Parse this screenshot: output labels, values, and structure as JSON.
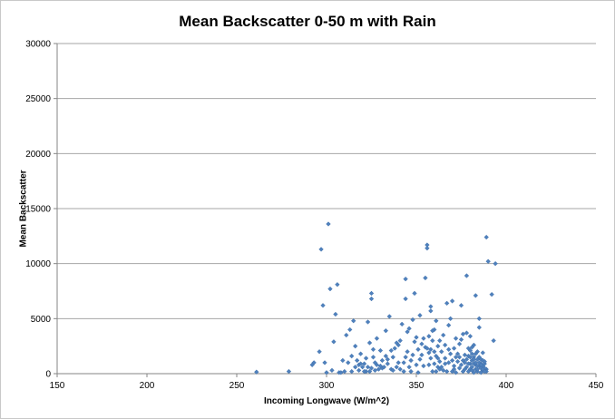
{
  "chart_data": {
    "type": "scatter",
    "title": "Mean Backscatter 0-50 m with Rain",
    "xlabel": "Incoming Longwave (W/m^2)",
    "ylabel": "Mean Backscatter",
    "xlim": [
      150,
      450
    ],
    "ylim": [
      0,
      30000
    ],
    "xticks": [
      "150",
      "200",
      "250",
      "300",
      "350",
      "400",
      "450"
    ],
    "yticks": [
      "0",
      "5000",
      "10000",
      "15000",
      "20000",
      "25000",
      "30000"
    ],
    "grid": "horizontal",
    "legend": "none",
    "marker_color": "#4f81bd",
    "points": [
      [
        261,
        150
      ],
      [
        279,
        200
      ],
      [
        292,
        800
      ],
      [
        293,
        1000
      ],
      [
        296,
        2000
      ],
      [
        297,
        11300
      ],
      [
        298,
        6200
      ],
      [
        299,
        1000
      ],
      [
        300,
        100
      ],
      [
        301,
        13600
      ],
      [
        302,
        7700
      ],
      [
        303,
        300
      ],
      [
        304,
        2900
      ],
      [
        305,
        5400
      ],
      [
        306,
        8100
      ],
      [
        307,
        100
      ],
      [
        308,
        100
      ],
      [
        309,
        1200
      ],
      [
        310,
        200
      ],
      [
        311,
        3500
      ],
      [
        312,
        1000
      ],
      [
        313,
        4000
      ],
      [
        314,
        200
      ],
      [
        315,
        4800
      ],
      [
        316,
        2500
      ],
      [
        317,
        1200
      ],
      [
        318,
        800
      ],
      [
        319,
        1800
      ],
      [
        320,
        600
      ],
      [
        321,
        900
      ],
      [
        322,
        200
      ],
      [
        323,
        4700
      ],
      [
        324,
        2800
      ],
      [
        325,
        7300
      ],
      [
        325,
        6800
      ],
      [
        326,
        1500
      ],
      [
        327,
        300
      ],
      [
        328,
        3200
      ],
      [
        330,
        2100
      ],
      [
        331,
        500
      ],
      [
        332,
        600
      ],
      [
        333,
        3900
      ],
      [
        334,
        1300
      ],
      [
        335,
        5200
      ],
      [
        336,
        400
      ],
      [
        337,
        1500
      ],
      [
        338,
        2300
      ],
      [
        339,
        2800
      ],
      [
        340,
        1000
      ],
      [
        341,
        3000
      ],
      [
        342,
        4500
      ],
      [
        343,
        200
      ],
      [
        344,
        8600
      ],
      [
        344,
        6800
      ],
      [
        345,
        2000
      ],
      [
        346,
        4100
      ],
      [
        347,
        1200
      ],
      [
        348,
        4900
      ],
      [
        349,
        7300
      ],
      [
        350,
        800
      ],
      [
        351,
        100
      ],
      [
        352,
        5300
      ],
      [
        353,
        2700
      ],
      [
        354,
        3200
      ],
      [
        355,
        8700
      ],
      [
        356,
        11700
      ],
      [
        356,
        11400
      ],
      [
        357,
        1900
      ],
      [
        358,
        5700
      ],
      [
        358,
        6100
      ],
      [
        359,
        3000
      ],
      [
        360,
        4000
      ],
      [
        361,
        4800
      ],
      [
        362,
        1400
      ],
      [
        363,
        3000
      ],
      [
        364,
        2000
      ],
      [
        365,
        300
      ],
      [
        366,
        900
      ],
      [
        367,
        6400
      ],
      [
        368,
        4400
      ],
      [
        369,
        5000
      ],
      [
        370,
        6600
      ],
      [
        371,
        2300
      ],
      [
        372,
        1500
      ],
      [
        373,
        1800
      ],
      [
        374,
        500
      ],
      [
        375,
        3100
      ],
      [
        375,
        6200
      ],
      [
        376,
        1200
      ],
      [
        377,
        1700
      ],
      [
        378,
        8900
      ],
      [
        378,
        3700
      ],
      [
        379,
        2300
      ],
      [
        380,
        900
      ],
      [
        380,
        400
      ],
      [
        381,
        300
      ],
      [
        381,
        600
      ],
      [
        382,
        2600
      ],
      [
        382,
        1500
      ],
      [
        383,
        800
      ],
      [
        383,
        7100
      ],
      [
        384,
        2000
      ],
      [
        384,
        200
      ],
      [
        385,
        5000
      ],
      [
        385,
        4200
      ],
      [
        386,
        900
      ],
      [
        386,
        1300
      ],
      [
        387,
        300
      ],
      [
        387,
        700
      ],
      [
        388,
        900
      ],
      [
        389,
        12400
      ],
      [
        389,
        400
      ],
      [
        390,
        10200
      ],
      [
        392,
        7200
      ],
      [
        393,
        3000
      ],
      [
        394,
        10000
      ],
      [
        330,
        700
      ],
      [
        334,
        900
      ],
      [
        337,
        300
      ],
      [
        340,
        2600
      ],
      [
        344,
        1500
      ],
      [
        347,
        200
      ],
      [
        350,
        3300
      ],
      [
        353,
        1700
      ],
      [
        355,
        2400
      ],
      [
        358,
        2200
      ],
      [
        360,
        2000
      ],
      [
        362,
        600
      ],
      [
        365,
        3500
      ],
      [
        368,
        1000
      ],
      [
        370,
        200
      ],
      [
        372,
        3200
      ],
      [
        374,
        1500
      ],
      [
        376,
        200
      ],
      [
        378,
        600
      ],
      [
        379,
        1600
      ],
      [
        380,
        2100
      ],
      [
        381,
        1200
      ],
      [
        382,
        100
      ],
      [
        383,
        1800
      ],
      [
        384,
        1300
      ],
      [
        385,
        700
      ],
      [
        386,
        100
      ],
      [
        387,
        1900
      ],
      [
        388,
        500
      ],
      [
        389,
        200
      ],
      [
        322,
        1400
      ],
      [
        324,
        200
      ],
      [
        326,
        2200
      ],
      [
        328,
        800
      ],
      [
        318,
        300
      ],
      [
        316,
        600
      ],
      [
        314,
        1600
      ],
      [
        345,
        3800
      ],
      [
        349,
        2900
      ],
      [
        351,
        2200
      ],
      [
        354,
        700
      ],
      [
        357,
        800
      ],
      [
        359,
        200
      ],
      [
        361,
        1600
      ],
      [
        363,
        1100
      ],
      [
        366,
        2600
      ],
      [
        369,
        1800
      ],
      [
        371,
        400
      ],
      [
        373,
        1100
      ],
      [
        375,
        800
      ],
      [
        377,
        400
      ],
      [
        379,
        900
      ],
      [
        380,
        1500
      ],
      [
        381,
        2400
      ],
      [
        382,
        900
      ],
      [
        383,
        400
      ],
      [
        384,
        700
      ],
      [
        385,
        1000
      ],
      [
        386,
        500
      ],
      [
        387,
        1200
      ],
      [
        388,
        1100
      ],
      [
        352,
        1300
      ],
      [
        348,
        1700
      ],
      [
        346,
        600
      ],
      [
        343,
        1000
      ],
      [
        339,
        600
      ],
      [
        336,
        2100
      ],
      [
        333,
        1600
      ],
      [
        331,
        1200
      ],
      [
        329,
        400
      ],
      [
        327,
        1000
      ],
      [
        325,
        500
      ],
      [
        323,
        600
      ],
      [
        321,
        200
      ],
      [
        319,
        900
      ],
      [
        341,
        400
      ],
      [
        356,
        2300
      ],
      [
        357,
        3400
      ],
      [
        358,
        1400
      ],
      [
        359,
        3900
      ],
      [
        360,
        900
      ],
      [
        361,
        200
      ],
      [
        362,
        2500
      ],
      [
        363,
        400
      ],
      [
        364,
        600
      ],
      [
        366,
        1400
      ],
      [
        367,
        200
      ],
      [
        368,
        2200
      ],
      [
        370,
        1200
      ],
      [
        371,
        700
      ],
      [
        372,
        100
      ],
      [
        374,
        2700
      ],
      [
        376,
        3600
      ],
      [
        377,
        1000
      ],
      [
        378,
        1300
      ],
      [
        379,
        200
      ],
      [
        380,
        3400
      ],
      [
        381,
        1800
      ],
      [
        382,
        1300
      ],
      [
        383,
        1000
      ],
      [
        384,
        400
      ],
      [
        385,
        1500
      ],
      [
        386,
        800
      ],
      [
        387,
        400
      ],
      [
        388,
        200
      ]
    ]
  }
}
